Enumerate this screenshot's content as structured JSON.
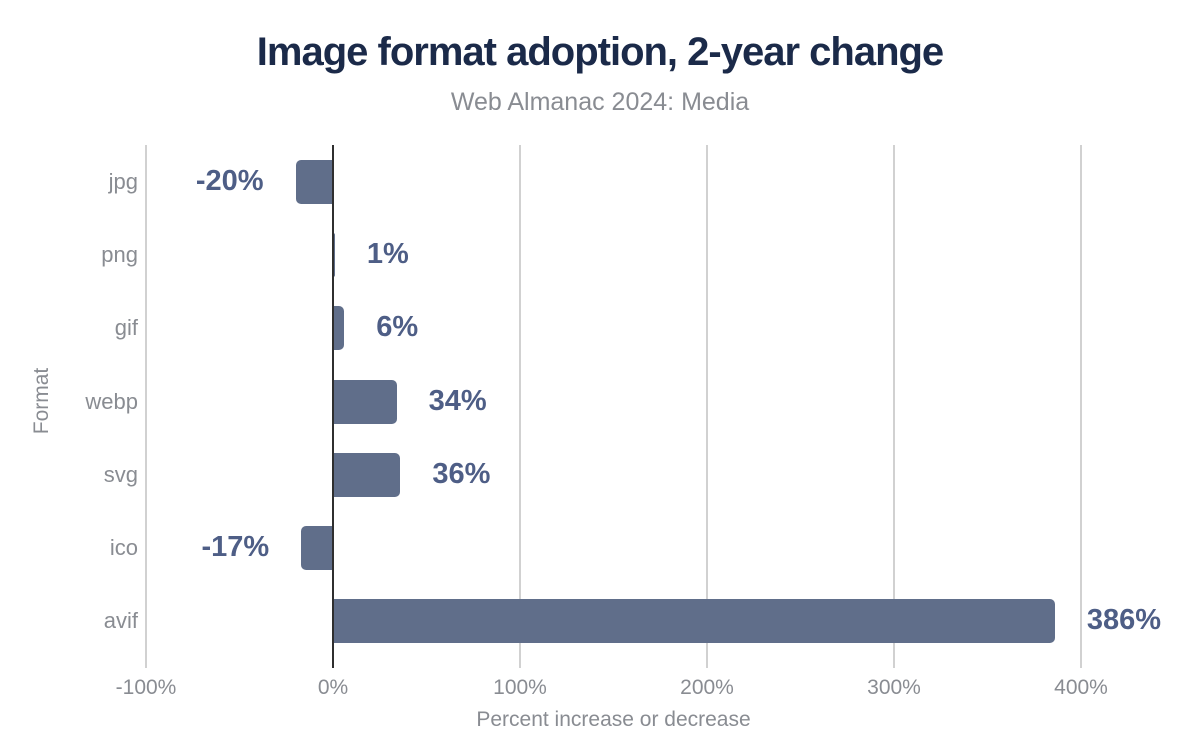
{
  "chart_data": {
    "type": "bar",
    "orientation": "horizontal",
    "title": "Image format adoption, 2-year change",
    "subtitle": "Web Almanac 2024: Media",
    "xlabel": "Percent increase or decrease",
    "ylabel": "Format",
    "categories": [
      "jpg",
      "png",
      "gif",
      "webp",
      "svg",
      "ico",
      "avif"
    ],
    "values": [
      -20,
      1,
      6,
      34,
      36,
      -17,
      386
    ],
    "value_labels": [
      "-20%",
      "1%",
      "6%",
      "34%",
      "36%",
      "-17%",
      "386%"
    ],
    "xlim": [
      -100,
      400
    ],
    "xticks": [
      -100,
      0,
      100,
      200,
      300,
      400
    ],
    "xtick_labels": [
      "-100%",
      "0%",
      "100%",
      "200%",
      "300%",
      "400%"
    ],
    "grid": "vertical-gridlines",
    "legend": "none",
    "colors": {
      "bar": "#606e8a",
      "value_label": "#4e5e86",
      "title": "#1b2a49",
      "muted_text": "#898c92",
      "gridline": "#d1d1d1",
      "zero_line": "#2f2f2f",
      "background": "#ffffff"
    }
  }
}
